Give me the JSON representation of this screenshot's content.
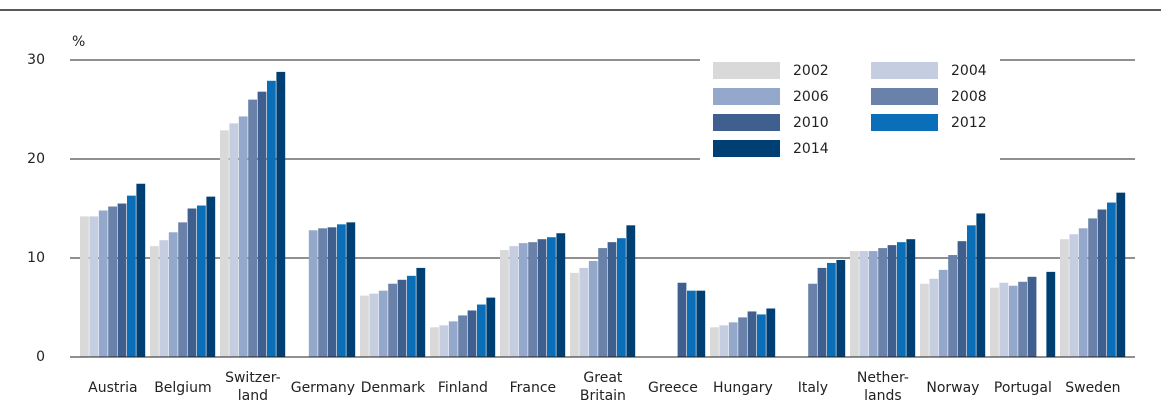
{
  "chart_data": {
    "type": "bar",
    "y_label": "%",
    "categories": [
      "Austria",
      "Belgium",
      "Switzer-\nland",
      "Germany",
      "Denmark",
      "Finland",
      "France",
      "Great\nBritain",
      "Greece",
      "Hungary",
      "Italy",
      "Nether-\nlands",
      "Norway",
      "Portugal",
      "Sweden"
    ],
    "series": [
      {
        "name": "2002",
        "color": "#d9d9d9",
        "values": [
          14.2,
          11.2,
          22.9,
          null,
          6.2,
          3.0,
          10.8,
          8.5,
          null,
          3.0,
          null,
          10.7,
          7.4,
          7.0,
          11.9
        ]
      },
      {
        "name": "2004",
        "color": "#c5cde0",
        "values": [
          14.2,
          11.8,
          23.6,
          null,
          6.4,
          3.2,
          11.2,
          9.0,
          null,
          3.2,
          null,
          10.7,
          7.9,
          7.5,
          12.4
        ]
      },
      {
        "name": "2006",
        "color": "#94a8cc",
        "values": [
          14.8,
          12.6,
          24.3,
          12.8,
          6.7,
          3.6,
          11.5,
          9.7,
          null,
          3.5,
          null,
          10.7,
          8.8,
          7.2,
          13.0
        ]
      },
      {
        "name": "2008",
        "color": "#6a82aa",
        "values": [
          15.2,
          13.6,
          26.0,
          13.0,
          7.4,
          4.2,
          11.6,
          11.0,
          null,
          4.0,
          7.4,
          11.0,
          10.3,
          7.6,
          14.0
        ]
      },
      {
        "name": "2010",
        "color": "#3f5f8f",
        "values": [
          15.5,
          15.0,
          26.8,
          13.1,
          7.8,
          4.7,
          11.9,
          11.6,
          7.5,
          4.6,
          9.0,
          11.3,
          11.7,
          8.1,
          14.9
        ]
      },
      {
        "name": "2012",
        "color": "#0a6fb8",
        "values": [
          16.3,
          15.3,
          27.9,
          13.4,
          8.2,
          5.3,
          12.1,
          12.0,
          6.7,
          4.3,
          9.5,
          11.6,
          13.3,
          null,
          15.6
        ]
      },
      {
        "name": "2014",
        "color": "#003f73",
        "values": [
          17.5,
          16.2,
          28.8,
          13.6,
          9.0,
          6.0,
          12.5,
          13.3,
          6.7,
          4.9,
          9.8,
          11.9,
          14.5,
          8.6,
          16.6
        ]
      }
    ],
    "ylim": [
      0,
      30
    ],
    "yticks": [
      0,
      10,
      20,
      30
    ],
    "grid": true,
    "legend": "upper right"
  }
}
